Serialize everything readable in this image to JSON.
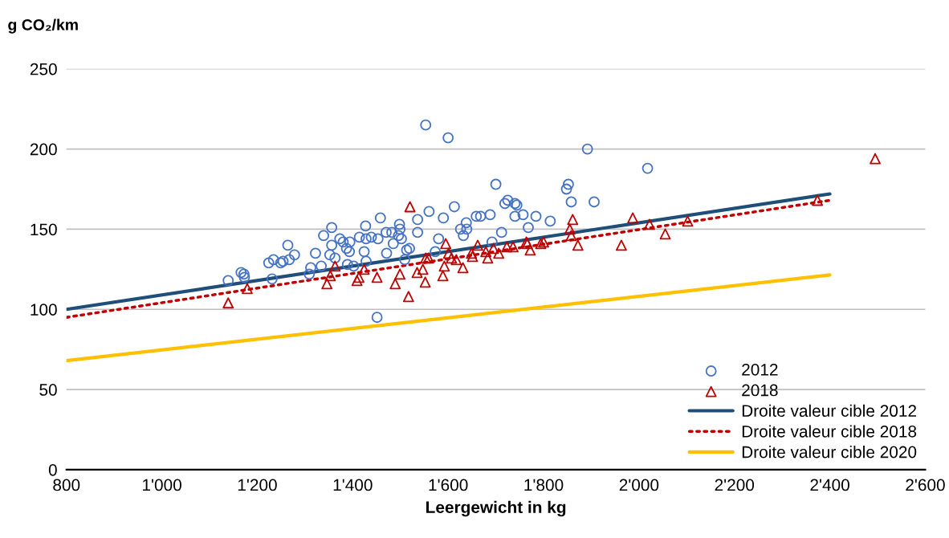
{
  "chart_data": {
    "type": "scatter",
    "ylabel": "g CO₂/km",
    "xlabel": "Leergewicht in kg",
    "xlim": [
      800,
      2600
    ],
    "xticks": [
      800,
      {
        "value": 1000,
        "label": "1'000"
      },
      {
        "value": 1200,
        "label": "1'200"
      },
      {
        "value": 1400,
        "label": "1'400"
      },
      {
        "value": 1600,
        "label": "1'600"
      },
      {
        "value": 1800,
        "label": "1'800"
      },
      {
        "value": 2000,
        "label": "2'000"
      },
      {
        "value": 2200,
        "label": "2'200"
      },
      {
        "value": 2400,
        "label": "2'400"
      },
      {
        "value": 2600,
        "label": "2'600"
      }
    ],
    "ylim": [
      0,
      250
    ],
    "yticks": [
      0,
      50,
      100,
      150,
      200,
      250
    ],
    "grid": "y",
    "legend": "bottom right",
    "series": [
      {
        "name": "2012",
        "marker": "circle",
        "color": "#4472c4",
        "x": [
          1139,
          1166,
          1172,
          1173,
          1231,
          1224,
          1234,
          1249,
          1254,
          1264,
          1267,
          1278,
          1309,
          1312,
          1322,
          1334,
          1339,
          1356,
          1352,
          1356,
          1363,
          1373,
          1380,
          1387,
          1393,
          1394,
          1389,
          1402,
          1414,
          1427,
          1424,
          1428,
          1428,
          1439,
          1453,
          1458,
          1451,
          1471,
          1470,
          1482,
          1485,
          1498,
          1499,
          1496,
          1502,
          1509,
          1513,
          1519,
          1536,
          1536,
          1560,
          1580,
          1590,
          1573,
          1553,
          1600,
          1700,
          1613,
          1638,
          1626,
          1632,
          1639,
          1659,
          1668,
          1688,
          1692,
          1712,
          1719,
          1725,
          1740,
          1744,
          1740,
          1757,
          1768,
          1784,
          1814,
          1848,
          1852,
          1858,
          1892,
          1906,
          2018
        ],
        "values": [
          118,
          123,
          122,
          120,
          119,
          129,
          131,
          129,
          130,
          140,
          131,
          134,
          122,
          126,
          135,
          127,
          146,
          151,
          134,
          140,
          132,
          144,
          142,
          138,
          136,
          142,
          128,
          127,
          145,
          152,
          136,
          130,
          144,
          145,
          144,
          157,
          95,
          135,
          148,
          148,
          141,
          153,
          150,
          146,
          144,
          131,
          137,
          138,
          156,
          148,
          161,
          144,
          157,
          136,
          215,
          207,
          178,
          164,
          154,
          150,
          146,
          150,
          158,
          158,
          159,
          142,
          148,
          166,
          168,
          166,
          165,
          158,
          159,
          151,
          158,
          155,
          175,
          178,
          167,
          200,
          167,
          188
        ]
      },
      {
        "name": "2018",
        "marker": "triangle",
        "color": "#c00000",
        "x": [
          1139,
          1179,
          1346,
          1353,
          1363,
          1409,
          1413,
          1424,
          1451,
          1489,
          1499,
          1517,
          1520,
          1595,
          1601,
          1607,
          1617,
          1553,
          1559,
          1592,
          1631,
          1589,
          1547,
          1535,
          1552,
          1649,
          1651,
          1662,
          1679,
          1683,
          1695,
          1706,
          1723,
          1736,
          1764,
          1766,
          1772,
          1794,
          1800,
          1861,
          1855,
          1858,
          1872,
          1963,
          1987,
          2022,
          2055,
          2102,
          2374,
          2495
        ],
        "values": [
          104,
          113,
          116,
          121,
          127,
          118,
          120,
          125,
          120,
          116,
          122,
          108,
          164,
          141,
          135,
          132,
          131,
          132,
          132,
          127,
          126,
          121,
          125,
          123,
          117,
          135,
          133,
          140,
          136,
          132,
          138,
          135,
          139,
          139,
          142,
          141,
          137,
          141,
          142,
          156,
          150,
          146,
          140,
          140,
          157,
          153,
          147,
          155,
          168,
          194
        ]
      },
      {
        "name": "Droite valeur cible 2012",
        "type": "line",
        "line_style": "solid",
        "color": "#1f4e79",
        "x": [
          800,
          2400
        ],
        "values": [
          100,
          172
        ]
      },
      {
        "name": "Droite valeur cible 2018",
        "type": "line",
        "line_style": "dotted",
        "color": "#c00000",
        "x": [
          800,
          2400
        ],
        "values": [
          95,
          168
        ]
      },
      {
        "name": "Droite valeur cible 2020",
        "type": "line",
        "line_style": "solid",
        "color": "#ffc000",
        "x": [
          800,
          2400
        ],
        "values": [
          68,
          121.5
        ]
      }
    ]
  }
}
